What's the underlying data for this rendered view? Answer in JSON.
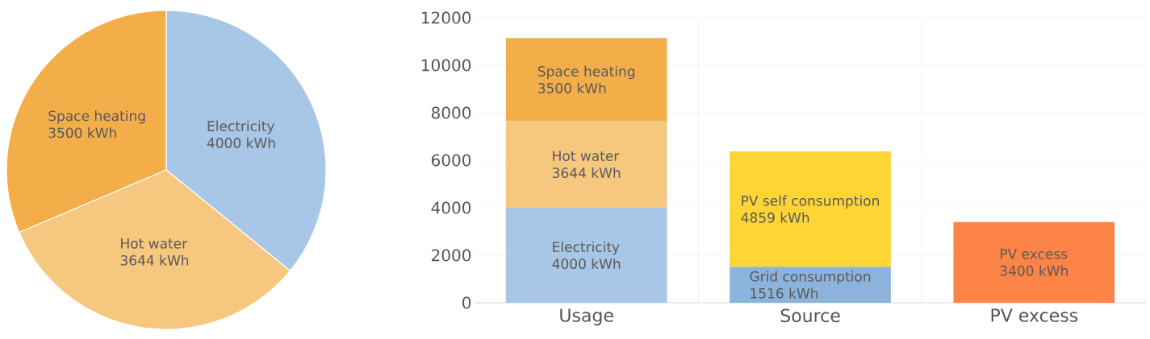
{
  "chart_data": [
    {
      "type": "pie",
      "categories": [
        "Electricity",
        "Hot water",
        "Space heating"
      ],
      "values": [
        4000,
        3644,
        3500
      ],
      "colors": [
        "#a8c6e5",
        "#f6c77e",
        "#f3ae4a"
      ],
      "value_labels": [
        "4000 kWh",
        "3644 kWh",
        "3500 kWh"
      ]
    },
    {
      "type": "bar",
      "stacked": true,
      "categories": [
        "Usage",
        "Source",
        "PV excess"
      ],
      "ylim": [
        0,
        12000
      ],
      "yticks": [
        0,
        2000,
        4000,
        6000,
        8000,
        10000,
        12000
      ],
      "grid": true,
      "series": [
        {
          "name": "Electricity",
          "color": "#a8c6e5",
          "values": [
            4000,
            null,
            null
          ],
          "value_labels": [
            "4000 kWh",
            null,
            null
          ]
        },
        {
          "name": "Hot water",
          "color": "#f6c77e",
          "values": [
            3644,
            null,
            null
          ],
          "value_labels": [
            "3644 kWh",
            null,
            null
          ]
        },
        {
          "name": "Space heating",
          "color": "#f3ae4a",
          "values": [
            3500,
            null,
            null
          ],
          "value_labels": [
            "3500 kWh",
            null,
            null
          ]
        },
        {
          "name": "Grid consumption",
          "color": "#8cb3dc",
          "values": [
            null,
            1516,
            null
          ],
          "value_labels": [
            null,
            "1516 kWh",
            null
          ]
        },
        {
          "name": "PV self consumption",
          "color": "#fdd535",
          "values": [
            null,
            4859,
            null
          ],
          "value_labels": [
            null,
            "4859 kWh",
            null
          ]
        },
        {
          "name": "PV excess",
          "color": "#fd8447",
          "values": [
            null,
            null,
            3400
          ],
          "value_labels": [
            null,
            null,
            "3400 kWh"
          ]
        }
      ]
    }
  ]
}
